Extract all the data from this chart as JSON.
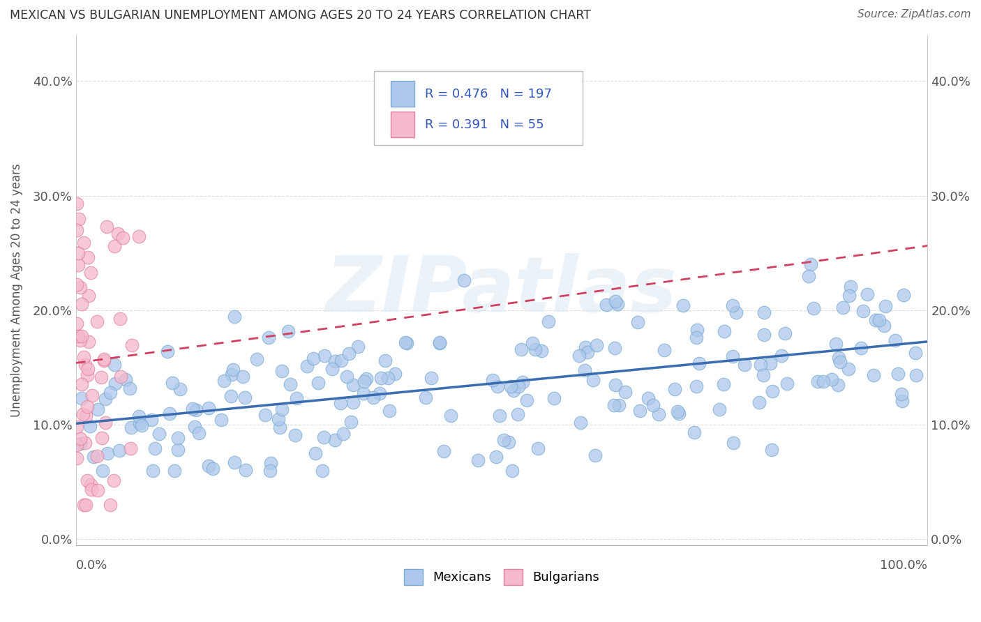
{
  "title": "MEXICAN VS BULGARIAN UNEMPLOYMENT AMONG AGES 20 TO 24 YEARS CORRELATION CHART",
  "source": "Source: ZipAtlas.com",
  "ylabel": "Unemployment Among Ages 20 to 24 years",
  "watermark": "ZIPatlas",
  "xlim": [
    0.0,
    1.0
  ],
  "ylim": [
    -0.005,
    0.44
  ],
  "yticks": [
    0.0,
    0.1,
    0.2,
    0.3,
    0.4
  ],
  "yticklabels": [
    "0.0%",
    "10.0%",
    "20.0%",
    "30.0%",
    "40.0%"
  ],
  "blue_color": "#adc8ec",
  "blue_edge": "#7aaad0",
  "pink_color": "#f5b8cc",
  "pink_edge": "#e080a0",
  "blue_line_color": "#3a6cb0",
  "pink_line_color": "#d04060",
  "R_mexican": 0.476,
  "N_mexican": 197,
  "R_bulgarian": 0.391,
  "N_bulgarian": 55,
  "legend_text_color": "#3355bb",
  "title_color": "#333333",
  "source_color": "#666666",
  "grid_color": "#dddddd",
  "background_color": "#ffffff"
}
